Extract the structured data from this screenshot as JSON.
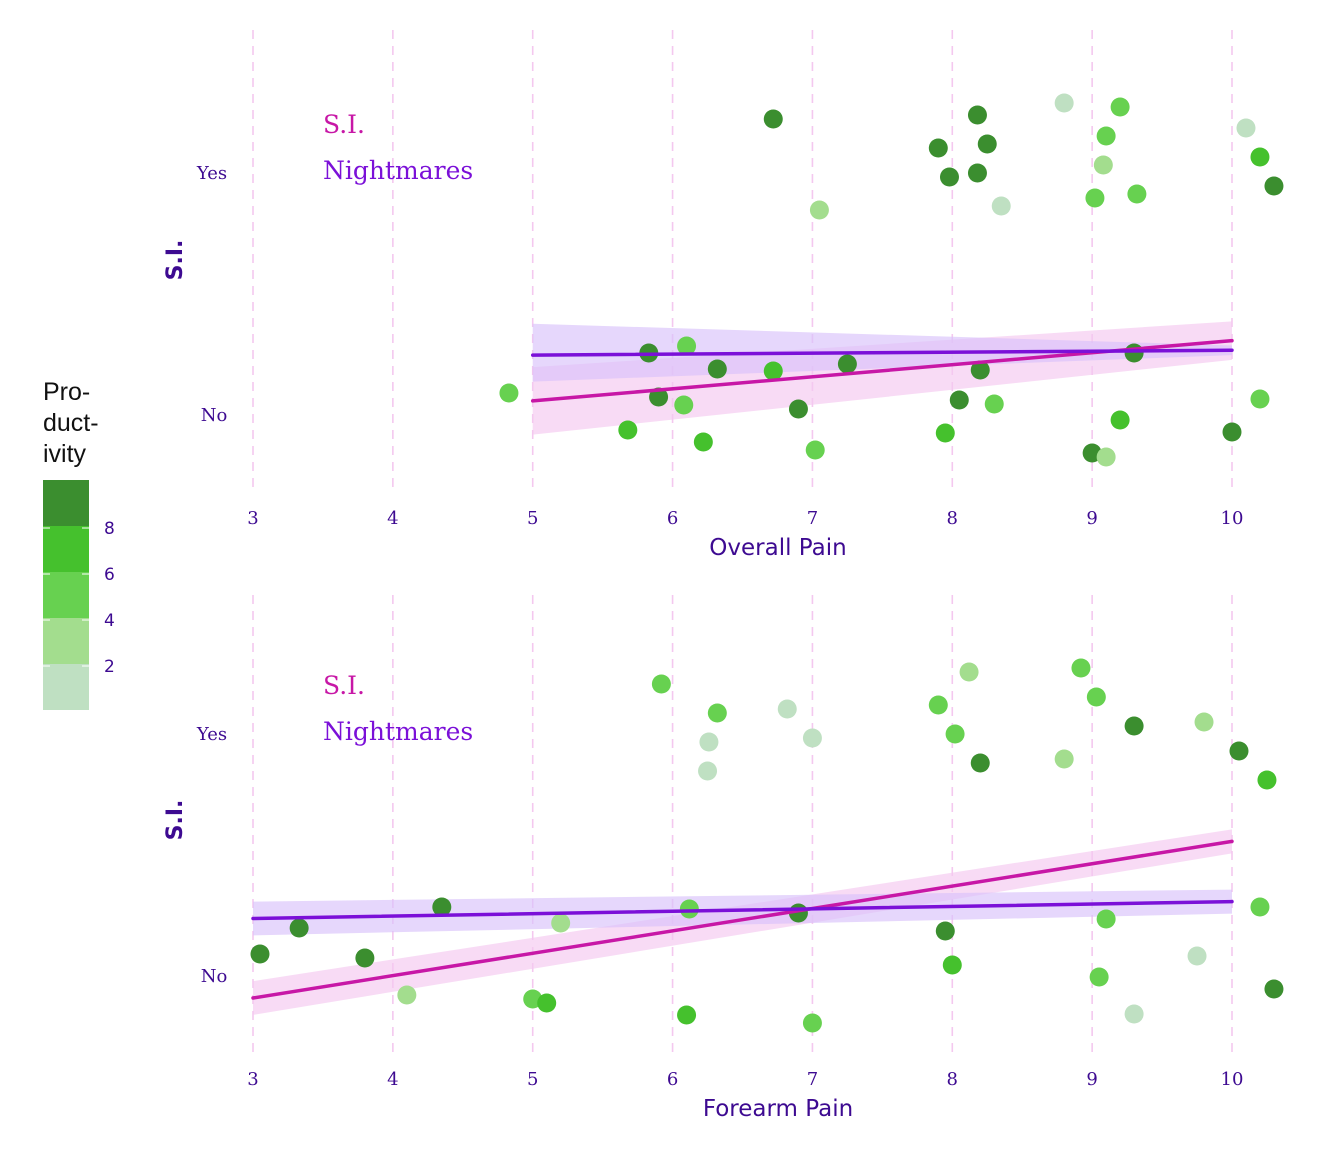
{
  "colors": {
    "si": "#c717a6",
    "nightmares": "#7b10d8",
    "si_band": "#f5c8f0",
    "nightmares_band": "#d9c2fb",
    "grid": "#f4c8ef",
    "text": "#3d0a91",
    "scale": [
      "#bfe0c2",
      "#a3dd8e",
      "#67d150",
      "#45c12d",
      "#3b8e2f"
    ]
  },
  "legend": {
    "title": [
      "Pro-",
      "duct-",
      "ivity"
    ],
    "ticks": [
      "8",
      "6",
      "4",
      "2"
    ]
  },
  "chart_data": [
    {
      "type": "scatter",
      "xlabel": "Overall Pain",
      "ylabel": "S.I.",
      "x_ticks": [
        "3",
        "4",
        "5",
        "6",
        "7",
        "8",
        "9",
        "10"
      ],
      "y_categories": [
        "No",
        "Yes"
      ],
      "xlim": [
        2.85,
        10.4
      ],
      "series_labels": [
        "S.I.",
        "Nightmares"
      ],
      "fit_lines": [
        {
          "name": "S.I.",
          "x": [
            5,
            10
          ],
          "y": [
            -0.07,
            0.18
          ],
          "ci": [
            [
              -0.21,
              0.07
            ],
            [
              0.1,
              0.26
            ]
          ]
        },
        {
          "name": "Nightmares",
          "x": [
            5,
            10
          ],
          "y": [
            0.12,
            0.14
          ],
          "ci": [
            [
              0.01,
              0.25
            ],
            [
              0.12,
              0.16
            ]
          ]
        }
      ],
      "points": [
        {
          "x": 4.83,
          "y": 0,
          "p": 5
        },
        {
          "x": 5.68,
          "y": 0,
          "p": 7
        },
        {
          "x": 5.9,
          "y": 0,
          "p": 8
        },
        {
          "x": 5.83,
          "y": 1,
          "p": 8
        },
        {
          "x": 6.1,
          "y": 1,
          "p": 6
        },
        {
          "x": 6.32,
          "y": 1,
          "p": 8
        },
        {
          "x": 6.08,
          "y": 0,
          "p": 6
        },
        {
          "x": 6.22,
          "y": 0,
          "p": 7
        },
        {
          "x": 6.9,
          "y": 0,
          "p": 8
        },
        {
          "x": 6.72,
          "y": 1,
          "p": 7
        },
        {
          "x": 7.25,
          "y": 1,
          "p": 8
        },
        {
          "x": 7.02,
          "y": 0,
          "p": 6
        },
        {
          "x": 7.05,
          "y": 2,
          "p": 3
        },
        {
          "x": 6.72,
          "y": 2,
          "p": 8
        },
        {
          "x": 7.9,
          "y": 2,
          "p": 9
        },
        {
          "x": 7.98,
          "y": 2,
          "p": 8
        },
        {
          "x": 8.35,
          "y": 2,
          "p": 2
        },
        {
          "x": 8.18,
          "y": 2,
          "p": 8
        },
        {
          "x": 8.25,
          "y": 2,
          "p": 9
        },
        {
          "x": 8.18,
          "y": 2,
          "p": 8
        },
        {
          "x": 7.95,
          "y": 0,
          "p": 7
        },
        {
          "x": 8.05,
          "y": 0,
          "p": 9
        },
        {
          "x": 8.2,
          "y": 1,
          "p": 8
        },
        {
          "x": 8.3,
          "y": 0,
          "p": 6
        },
        {
          "x": 9.02,
          "y": 2,
          "p": 5
        },
        {
          "x": 9.2,
          "y": 2,
          "p": 6
        },
        {
          "x": 9.1,
          "y": 2,
          "p": 6
        },
        {
          "x": 9.08,
          "y": 2,
          "p": 3
        },
        {
          "x": 9.32,
          "y": 2,
          "p": 6
        },
        {
          "x": 8.8,
          "y": 2,
          "p": 2
        },
        {
          "x": 9.0,
          "y": 0,
          "p": 8
        },
        {
          "x": 9.2,
          "y": 0,
          "p": 7
        },
        {
          "x": 9.1,
          "y": 0,
          "p": 3
        },
        {
          "x": 9.3,
          "y": 1,
          "p": 9
        },
        {
          "x": 10.1,
          "y": 2,
          "p": 2
        },
        {
          "x": 10.2,
          "y": 2,
          "p": 7
        },
        {
          "x": 10.3,
          "y": 2,
          "p": 9
        },
        {
          "x": 10.0,
          "y": 0,
          "p": 8
        },
        {
          "x": 10.2,
          "y": 0,
          "p": 5
        }
      ]
    },
    {
      "type": "scatter",
      "xlabel": "Forearm Pain",
      "ylabel": "S.I.",
      "x_ticks": [
        "3",
        "4",
        "5",
        "6",
        "7",
        "8",
        "9",
        "10"
      ],
      "y_categories": [
        "No",
        "Yes"
      ],
      "xlim": [
        2.85,
        10.4
      ],
      "series_labels": [
        "S.I.",
        "Nightmares"
      ],
      "fit_lines": [
        {
          "name": "S.I.",
          "x": [
            3,
            10
          ],
          "y": [
            -0.22,
            0.43
          ],
          "ci": [
            [
              -0.29,
              -0.15
            ],
            [
              0.38,
              0.48
            ]
          ]
        },
        {
          "name": "Nightmares",
          "x": [
            3,
            10
          ],
          "y": [
            0.11,
            0.18
          ],
          "ci": [
            [
              0.04,
              0.18
            ],
            [
              0.13,
              0.23
            ]
          ]
        }
      ],
      "points": [
        {
          "x": 3.05,
          "y": 0,
          "p": 8
        },
        {
          "x": 3.33,
          "y": 1,
          "p": 9
        },
        {
          "x": 3.8,
          "y": 0,
          "p": 8
        },
        {
          "x": 4.1,
          "y": 0,
          "p": 3
        },
        {
          "x": 4.35,
          "y": 1,
          "p": 8
        },
        {
          "x": 5.0,
          "y": 0,
          "p": 5
        },
        {
          "x": 5.2,
          "y": 1,
          "p": 3
        },
        {
          "x": 5.1,
          "y": 0,
          "p": 7
        },
        {
          "x": 6.12,
          "y": 1,
          "p": 6
        },
        {
          "x": 5.92,
          "y": 2,
          "p": 5
        },
        {
          "x": 6.32,
          "y": 2,
          "p": 6
        },
        {
          "x": 6.26,
          "y": 2,
          "p": 2
        },
        {
          "x": 6.25,
          "y": 2,
          "p": 2
        },
        {
          "x": 6.1,
          "y": 0,
          "p": 7
        },
        {
          "x": 6.82,
          "y": 2,
          "p": 2
        },
        {
          "x": 7.0,
          "y": 2,
          "p": 2
        },
        {
          "x": 6.9,
          "y": 1,
          "p": 8
        },
        {
          "x": 7.0,
          "y": 0,
          "p": 5
        },
        {
          "x": 7.9,
          "y": 2,
          "p": 6
        },
        {
          "x": 8.02,
          "y": 2,
          "p": 6
        },
        {
          "x": 8.2,
          "y": 2,
          "p": 8
        },
        {
          "x": 8.12,
          "y": 2,
          "p": 3
        },
        {
          "x": 7.95,
          "y": 1,
          "p": 8
        },
        {
          "x": 8.0,
          "y": 0,
          "p": 7
        },
        {
          "x": 8.8,
          "y": 2,
          "p": 3
        },
        {
          "x": 8.92,
          "y": 2,
          "p": 6
        },
        {
          "x": 9.03,
          "y": 2,
          "p": 6
        },
        {
          "x": 9.3,
          "y": 2,
          "p": 8
        },
        {
          "x": 9.1,
          "y": 1,
          "p": 6
        },
        {
          "x": 9.05,
          "y": 0,
          "p": 5
        },
        {
          "x": 9.3,
          "y": 0,
          "p": 2
        },
        {
          "x": 9.8,
          "y": 2,
          "p": 3
        },
        {
          "x": 10.05,
          "y": 2,
          "p": 8
        },
        {
          "x": 10.25,
          "y": 2,
          "p": 7
        },
        {
          "x": 10.2,
          "y": 1,
          "p": 6
        },
        {
          "x": 10.3,
          "y": 0,
          "p": 8
        },
        {
          "x": 9.75,
          "y": 0,
          "p": 2
        }
      ]
    }
  ]
}
